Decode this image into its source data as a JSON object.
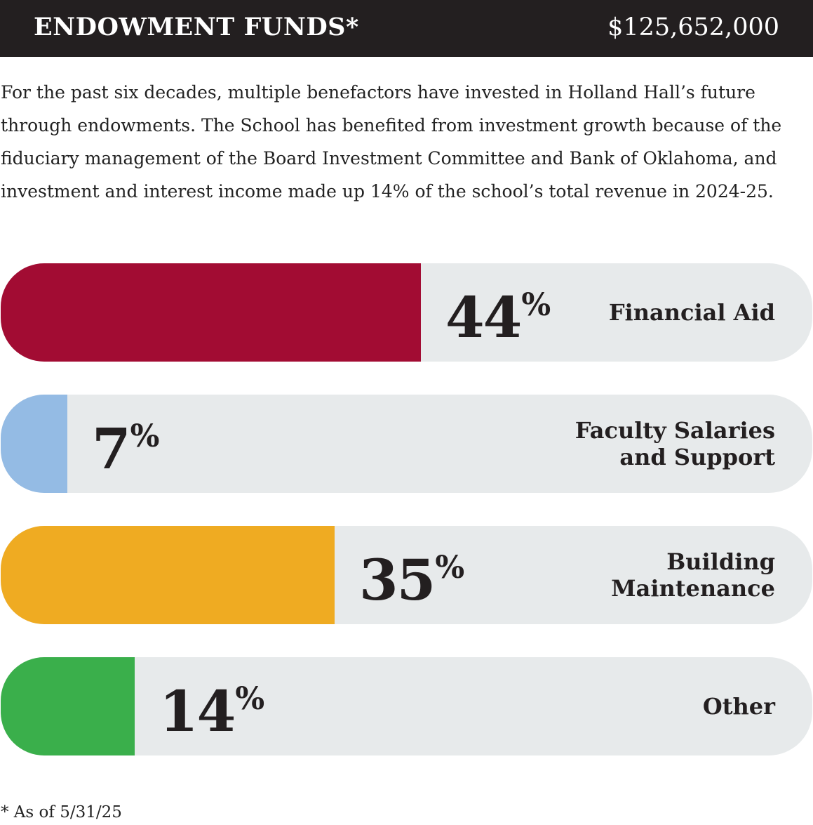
{
  "header": {
    "title": "ENDOWMENT FUNDS*",
    "amount": "$125,652,000"
  },
  "intro": "For the past six decades, multiple benefactors have invested in Holland Hall’s future through endowments. The School has benefited from investment growth because of the fiduciary management of the Board Investment Committee and Bank of Oklahoma, and investment and interest income made up 14% of the school’s total revenue in 2024-25.",
  "chart_data": {
    "type": "bar",
    "orientation": "horizontal",
    "categories": [
      "Financial Aid",
      "Faculty Salaries\nand Support",
      "Building\nMaintenance",
      "Other"
    ],
    "values": [
      44,
      7,
      35,
      14
    ],
    "unit": "%",
    "xlim": [
      0,
      85
    ],
    "colors": [
      "#a20c33",
      "#94bbe4",
      "#efab22",
      "#3aaf4b"
    ],
    "track_color": "#e7eaeb",
    "grid": false,
    "legend": "none"
  },
  "footnote": "* As of 5/31/25"
}
